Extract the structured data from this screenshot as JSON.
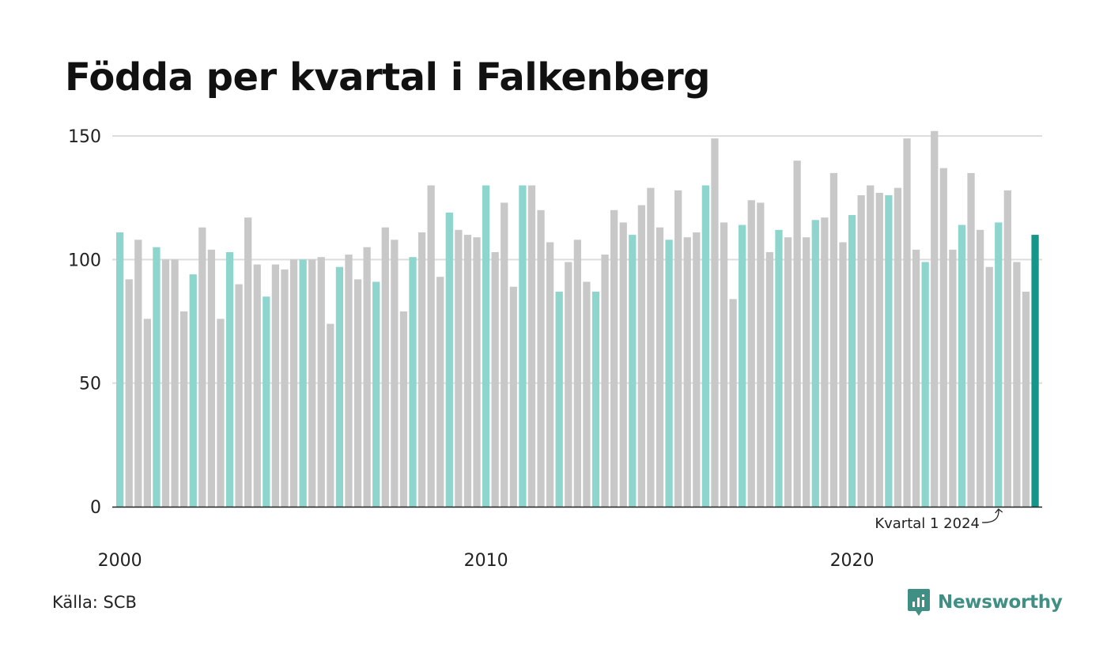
{
  "title": "Födda per kvartal i Falkenberg",
  "source": "Källa: SCB",
  "brand": "Newsworthy",
  "colors": {
    "quarter1": "#8dd5cd",
    "other": "#c8c8c8",
    "latest": "#14968a",
    "grid": "#dddddd",
    "axis": "#222222",
    "brand": "#3f8f84"
  },
  "chart_data": {
    "type": "bar",
    "start": "2000 Q1",
    "ylim": [
      0,
      150
    ],
    "yticks": [
      0,
      50,
      100,
      150
    ],
    "xticks": [
      {
        "label": "2000",
        "index": 0
      },
      {
        "label": "2010",
        "index": 40
      },
      {
        "label": "2020",
        "index": 80
      }
    ],
    "annotation": {
      "text": "Kvartal 1 2024",
      "index": 96
    },
    "grid": true,
    "values": [
      111,
      92,
      108,
      76,
      105,
      100,
      100,
      79,
      94,
      113,
      104,
      76,
      103,
      90,
      117,
      98,
      85,
      98,
      96,
      100,
      100,
      100,
      101,
      74,
      97,
      102,
      92,
      105,
      91,
      113,
      108,
      79,
      101,
      111,
      130,
      93,
      119,
      112,
      110,
      109,
      130,
      103,
      123,
      89,
      130,
      130,
      120,
      107,
      87,
      99,
      108,
      91,
      87,
      102,
      120,
      115,
      110,
      122,
      129,
      113,
      108,
      128,
      109,
      111,
      130,
      149,
      115,
      84,
      114,
      124,
      123,
      103,
      112,
      109,
      140,
      109,
      116,
      117,
      135,
      107,
      118,
      126,
      130,
      127,
      126,
      129,
      149,
      104,
      99,
      152,
      137,
      104,
      114,
      135,
      112,
      97,
      115,
      128,
      99,
      87,
      110
    ]
  }
}
